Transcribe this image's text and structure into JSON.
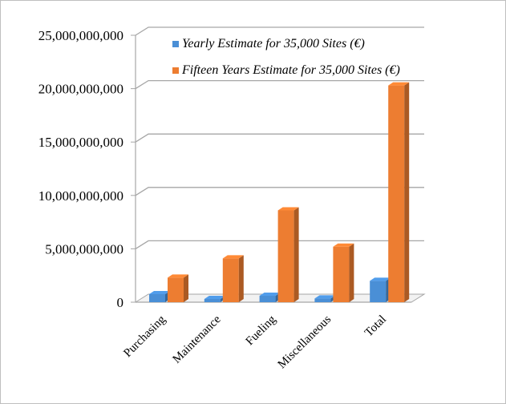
{
  "chart_data": {
    "type": "bar",
    "categories": [
      "Purchasing",
      "Maintenance",
      "Fueling",
      "Miscellaneous",
      "Total"
    ],
    "series": [
      {
        "name": "Yearly Estimate for 35,000 Sites (€)",
        "color": "#4a8fd6",
        "values": [
          750000000,
          300000000,
          600000000,
          350000000,
          2000000000
        ]
      },
      {
        "name": "Fifteen Years Estimate for 35,000 Sites (€)",
        "color": "#ed7d31",
        "values": [
          2300000000,
          4100000000,
          8600000000,
          5200000000,
          20300000000
        ]
      }
    ],
    "y_ticks": [
      "0",
      "5,000,000,000",
      "10,000,000,000",
      "15,000,000,000",
      "20,000,000,000",
      "25,000,000,000"
    ],
    "ylim": [
      0,
      25000000000
    ],
    "grid": true,
    "legend_position": "top-right"
  }
}
